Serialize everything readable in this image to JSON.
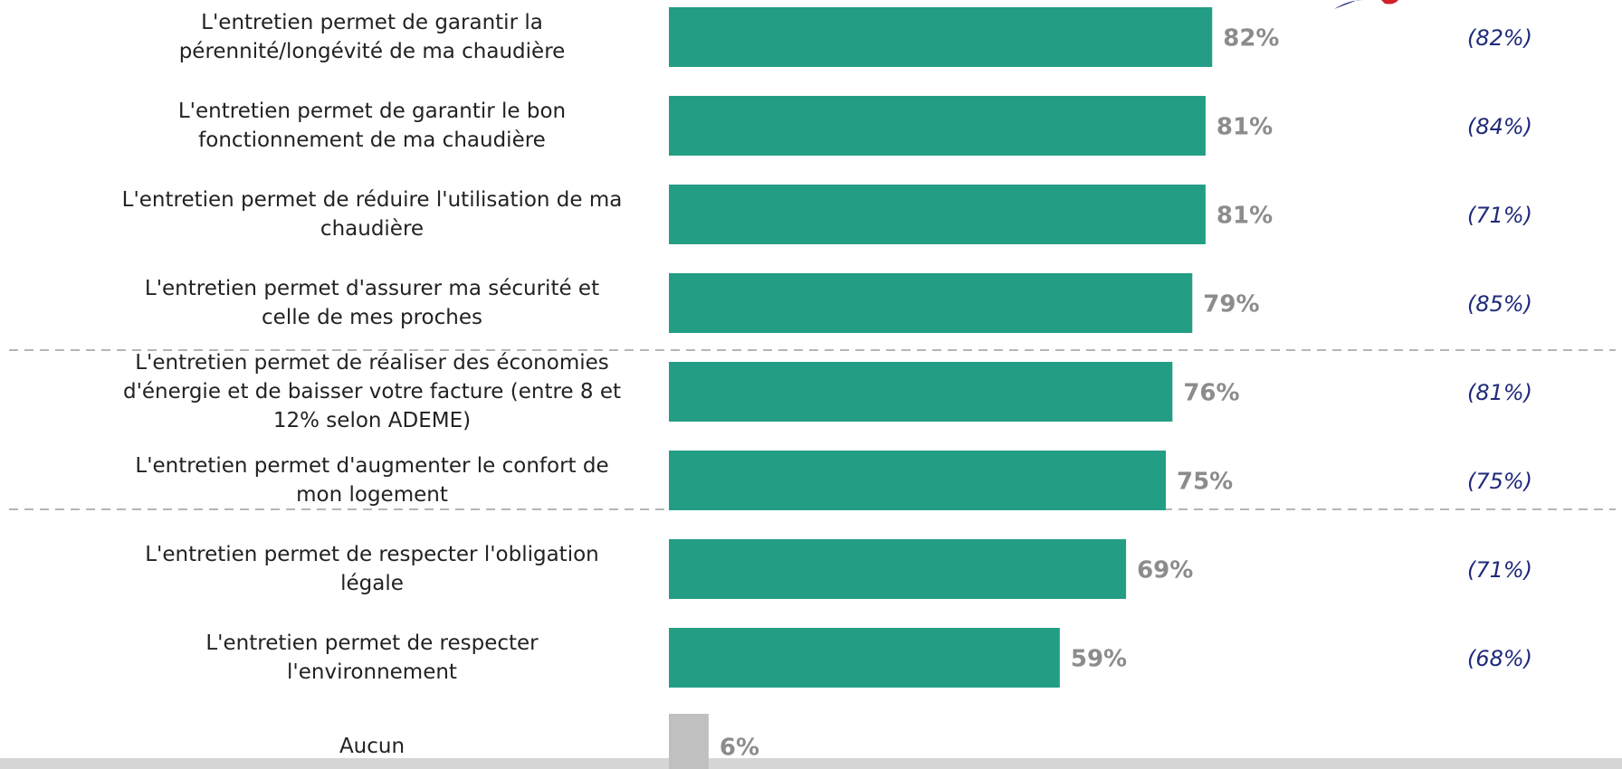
{
  "chart_data": {
    "type": "bar",
    "orientation": "horizontal",
    "categories": [
      "L'entretien permet de garantir la pérennité/longévité de ma chaudière",
      "L'entretien permet de garantir le bon fonctionnement de ma chaudière",
      "L'entretien permet de réduire l'utilisation de ma chaudière",
      "L'entretien permet d'assurer ma sécurité et celle de mes proches",
      "L'entretien permet de réaliser des économies d'énergie et de baisser votre facture (entre 8 et 12% selon ADEME)",
      "L'entretien permet d'augmenter le confort de mon logement",
      "L'entretien permet de respecter l'obligation légale",
      "L'entretien permet de respecter l'environnement",
      "Aucun"
    ],
    "values": [
      82,
      81,
      81,
      79,
      76,
      75,
      69,
      59,
      6
    ],
    "value_labels": [
      "82%",
      "81%",
      "81%",
      "79%",
      "76%",
      "75%",
      "69%",
      "59%",
      "6%"
    ],
    "colors": [
      "#239e85",
      "#239e85",
      "#239e85",
      "#239e85",
      "#239e85",
      "#239e85",
      "#239e85",
      "#239e85",
      "#c0c0c0"
    ],
    "comparison": {
      "values": [
        82,
        84,
        71,
        85,
        81,
        75,
        71,
        68
      ],
      "value_labels": [
        "(82%)",
        "(84%)",
        "(71%)",
        "(85%)",
        "(81%)",
        "(75%)",
        "(71%)",
        "(68%)"
      ]
    },
    "xlim": [
      0,
      100
    ]
  }
}
